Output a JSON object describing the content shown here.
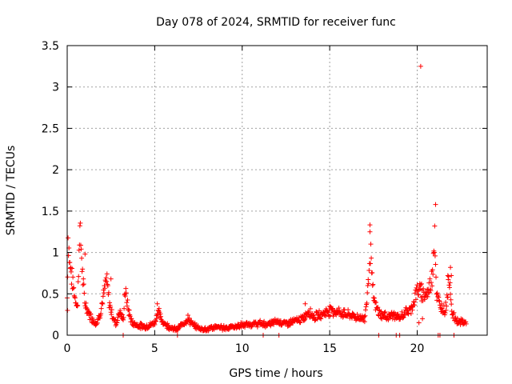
{
  "chart_data": {
    "type": "scatter",
    "title": "Day 078 of 2024, SRMTID for receiver func",
    "xlabel": "GPS time / hours",
    "ylabel": "SRMTID / TECUs",
    "xlim": [
      0,
      24
    ],
    "ylim": [
      0,
      3.5
    ],
    "x_ticks": [
      0,
      5,
      10,
      15,
      20
    ],
    "y_ticks": [
      0,
      0.5,
      1,
      1.5,
      2,
      2.5,
      3,
      3.5
    ],
    "x_tick_labels": [
      "0",
      "5",
      "10",
      "15",
      "20"
    ],
    "y_tick_labels": [
      "0",
      "0.5",
      "1",
      "1.5",
      "2",
      "2.5",
      "3",
      "3.5"
    ],
    "grid": true,
    "marker": "+",
    "color": "#ff0000",
    "curve": [
      [
        0.0,
        0.45
      ],
      [
        0.05,
        1.2
      ],
      [
        0.15,
        0.85
      ],
      [
        0.3,
        0.65
      ],
      [
        0.45,
        0.45
      ],
      [
        0.6,
        0.35
      ],
      [
        0.7,
        1.3
      ],
      [
        0.8,
        1.05
      ],
      [
        0.9,
        0.65
      ],
      [
        1.0,
        0.4
      ],
      [
        1.2,
        0.28
      ],
      [
        1.5,
        0.17
      ],
      [
        1.7,
        0.15
      ],
      [
        1.9,
        0.28
      ],
      [
        2.1,
        0.5
      ],
      [
        2.25,
        0.68
      ],
      [
        2.4,
        0.4
      ],
      [
        2.6,
        0.22
      ],
      [
        2.8,
        0.14
      ],
      [
        3.0,
        0.3
      ],
      [
        3.2,
        0.17
      ],
      [
        3.3,
        0.55
      ],
      [
        3.5,
        0.3
      ],
      [
        3.7,
        0.15
      ],
      [
        4.0,
        0.12
      ],
      [
        4.5,
        0.1
      ],
      [
        5.0,
        0.15
      ],
      [
        5.2,
        0.3
      ],
      [
        5.4,
        0.17
      ],
      [
        5.7,
        0.12
      ],
      [
        6.0,
        0.08
      ],
      [
        6.3,
        0.07
      ],
      [
        6.6,
        0.14
      ],
      [
        6.9,
        0.2
      ],
      [
        7.2,
        0.12
      ],
      [
        7.6,
        0.08
      ],
      [
        8.0,
        0.07
      ],
      [
        8.5,
        0.1
      ],
      [
        9.0,
        0.09
      ],
      [
        9.5,
        0.1
      ],
      [
        10.0,
        0.12
      ],
      [
        10.5,
        0.13
      ],
      [
        11.0,
        0.14
      ],
      [
        11.5,
        0.13
      ],
      [
        12.0,
        0.17
      ],
      [
        12.5,
        0.14
      ],
      [
        13.0,
        0.17
      ],
      [
        13.5,
        0.2
      ],
      [
        13.8,
        0.3
      ],
      [
        14.1,
        0.22
      ],
      [
        14.5,
        0.25
      ],
      [
        15.0,
        0.3
      ],
      [
        15.5,
        0.28
      ],
      [
        16.0,
        0.25
      ],
      [
        16.5,
        0.22
      ],
      [
        17.0,
        0.2
      ],
      [
        17.2,
        0.6
      ],
      [
        17.3,
        1.15
      ],
      [
        17.45,
        0.55
      ],
      [
        17.6,
        0.35
      ],
      [
        17.9,
        0.25
      ],
      [
        18.3,
        0.22
      ],
      [
        18.6,
        0.25
      ],
      [
        19.0,
        0.2
      ],
      [
        19.3,
        0.28
      ],
      [
        19.6,
        0.3
      ],
      [
        19.8,
        0.4
      ],
      [
        20.0,
        0.55
      ],
      [
        20.3,
        0.5
      ],
      [
        20.6,
        0.5
      ],
      [
        20.85,
        0.7
      ],
      [
        21.0,
        1.3
      ],
      [
        21.1,
        0.5
      ],
      [
        21.3,
        0.35
      ],
      [
        21.6,
        0.3
      ],
      [
        21.85,
        0.7
      ],
      [
        22.0,
        0.25
      ],
      [
        22.3,
        0.17
      ],
      [
        22.8,
        0.15
      ]
    ],
    "outliers": [
      [
        20.2,
        3.25
      ],
      [
        20.25,
        0.62
      ],
      [
        20.3,
        0.2
      ],
      [
        21.05,
        1.58
      ],
      [
        21.9,
        0.82
      ],
      [
        21.75,
        0.72
      ],
      [
        21.95,
        0.72
      ],
      [
        2.5,
        0.68
      ],
      [
        1.02,
        0.98
      ],
      [
        0.02,
        0.3
      ],
      [
        20.1,
        0.15
      ],
      [
        17.3,
        1.25
      ],
      [
        13.6,
        0.38
      ],
      [
        5.15,
        0.38
      ]
    ],
    "zero_points": [
      3.2,
      6.3,
      11.2,
      12.1,
      17.8,
      18.8,
      19.0,
      21.2,
      21.3,
      22.1
    ]
  }
}
